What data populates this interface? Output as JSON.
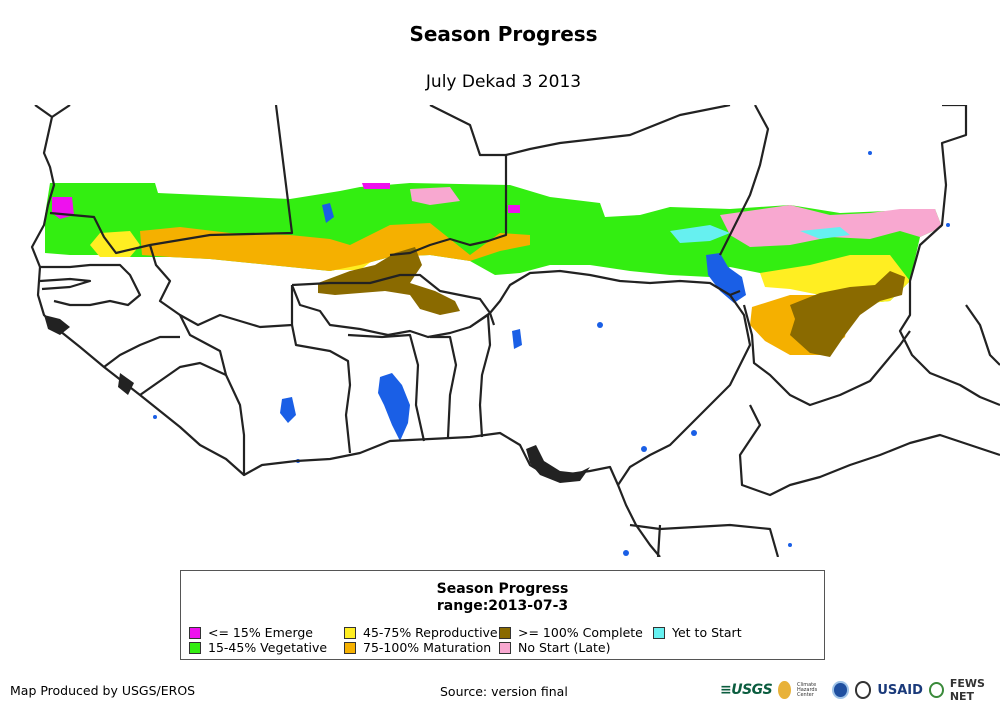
{
  "header": {
    "title": "Season Progress",
    "subtitle": "July Dekad 3 2013"
  },
  "legend": {
    "title": "Season Progress",
    "range": "range:2013-07-3",
    "items": [
      {
        "label": "<= 15% Emerge",
        "color": "#ee11ee"
      },
      {
        "label": "15-45% Vegetative",
        "color": "#33ee11"
      },
      {
        "label": "45-75% Reproductive",
        "color": "#ffee22"
      },
      {
        "label": "75-100% Maturation",
        "color": "#f5b000"
      },
      {
        "label": ">= 100% Complete",
        "color": "#8a6a00"
      },
      {
        "label": "No Start (Late)",
        "color": "#f8a8d0"
      },
      {
        "label": "Yet to Start",
        "color": "#66f0f0"
      }
    ]
  },
  "water_color": "#1a5fe6",
  "footer": {
    "produced_by": "Map Produced by USGS/EROS",
    "source": "Source: version final"
  },
  "logos": {
    "usgs": "≡USGS",
    "chc_text": "Climate Hazards Center",
    "usaid": "USAID",
    "fews": "FEWS NET"
  }
}
